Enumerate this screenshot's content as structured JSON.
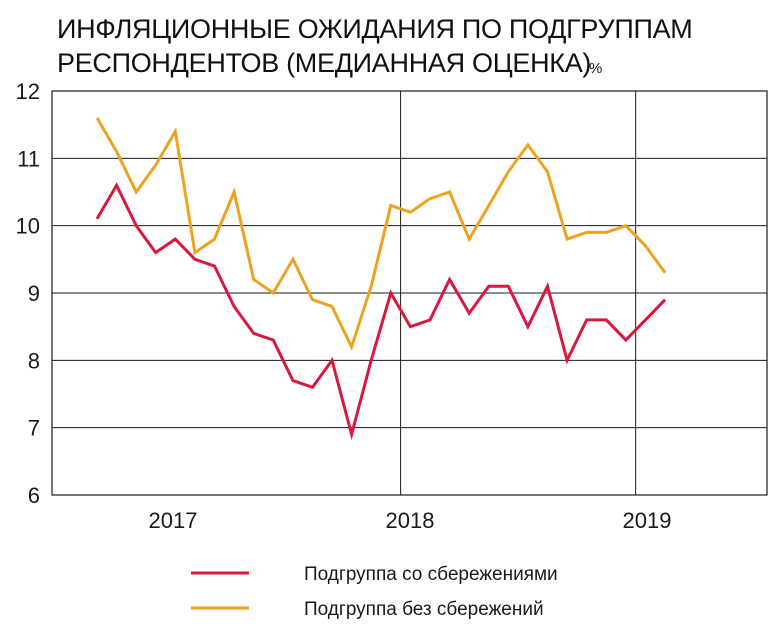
{
  "chart_data": {
    "type": "line",
    "title_lines": [
      "ИНФЛЯЦИОННЫЕ ОЖИДАНИЯ ПО ПОДГРУППАМ",
      "РЕСПОНДЕНТОВ (МЕДИАННАЯ ОЦЕНКА)"
    ],
    "unit": "%",
    "ylim": [
      6,
      12
    ],
    "yticks": [
      "6",
      "7",
      "8",
      "9",
      "10",
      "11",
      "12"
    ],
    "xticks": [
      "2017",
      "2018",
      "2019"
    ],
    "grid": true,
    "legend_position": "bottom",
    "x": [
      "2016-09",
      "2016-10",
      "2016-11",
      "2016-12",
      "2017-01",
      "2017-02",
      "2017-03",
      "2017-04",
      "2017-05",
      "2017-06",
      "2017-07",
      "2017-08",
      "2017-09",
      "2017-10",
      "2017-11",
      "2017-12",
      "2018-01",
      "2018-02",
      "2018-03",
      "2018-04",
      "2018-05",
      "2018-06",
      "2018-07",
      "2018-08",
      "2018-09",
      "2018-10",
      "2018-11",
      "2018-12",
      "2019-01",
      "2019-02",
      "2019-03"
    ],
    "series": [
      {
        "name": "Подгруппа со сбережениями",
        "color": "#d7193c",
        "values": [
          10.1,
          10.6,
          10.0,
          9.6,
          9.8,
          9.5,
          9.4,
          8.8,
          8.4,
          8.3,
          7.7,
          7.6,
          8.0,
          6.9,
          8.0,
          9.0,
          8.5,
          8.6,
          9.2,
          8.7,
          9.1,
          9.1,
          8.5,
          9.1,
          8.0,
          8.6,
          8.6,
          8.3,
          8.6,
          8.9,
          null
        ]
      },
      {
        "name": "Подгруппа без сбережений",
        "color": "#eda321",
        "values": [
          11.6,
          11.1,
          10.5,
          10.9,
          11.4,
          9.6,
          9.8,
          10.5,
          9.2,
          9.0,
          9.5,
          8.9,
          8.8,
          8.2,
          9.1,
          10.3,
          10.2,
          10.4,
          10.5,
          9.8,
          10.3,
          10.8,
          11.2,
          10.8,
          9.8,
          9.9,
          9.9,
          10.0,
          9.7,
          9.3,
          null
        ]
      }
    ]
  }
}
